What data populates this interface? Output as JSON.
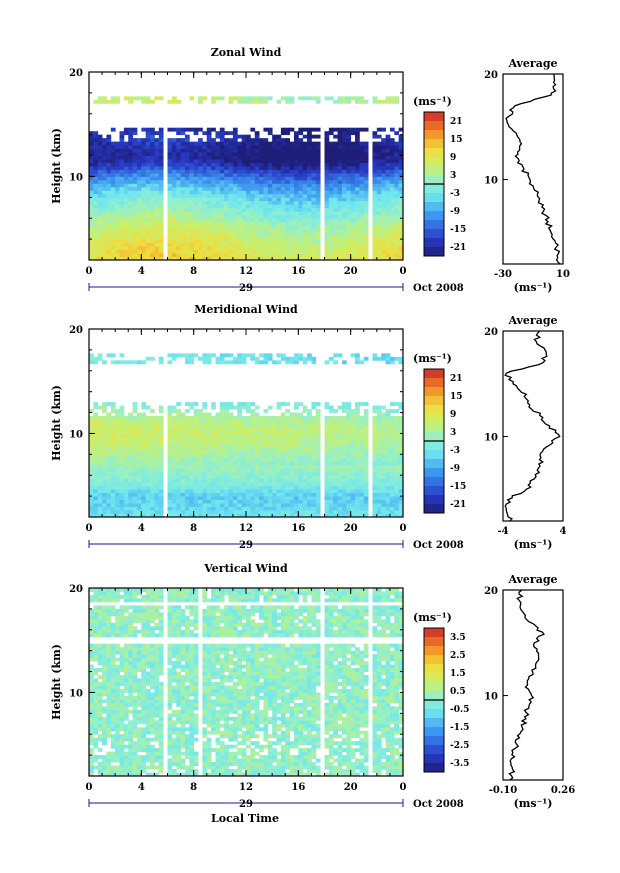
{
  "figure": {
    "xlabel": "Local Time",
    "date_label": "Oct 2008",
    "day_label": "29"
  },
  "panels": [
    {
      "key": "zonal",
      "title": "Zonal Wind",
      "ylabel": "Height (km)",
      "cbar_unit": "(ms⁻¹)",
      "cbar_labels": [
        "21",
        "15",
        "9",
        "3",
        "-3",
        "-9",
        "-15",
        "-21"
      ],
      "avg_title": "Average",
      "avg_unit": "(ms⁻¹)",
      "avg_xticks": [
        "-30",
        "10"
      ]
    },
    {
      "key": "meridional",
      "title": "Meridional Wind",
      "ylabel": "Height (km)",
      "cbar_unit": "(ms⁻¹)",
      "cbar_labels": [
        "21",
        "15",
        "9",
        "3",
        "-3",
        "-9",
        "-15",
        "-21"
      ],
      "avg_title": "Average",
      "avg_unit": "(ms⁻¹)",
      "avg_xticks": [
        "-4",
        "4"
      ]
    },
    {
      "key": "vertical",
      "title": "Vertical Wind",
      "ylabel": "Height (km)",
      "cbar_unit": "(ms⁻¹)",
      "cbar_labels": [
        "3.5",
        "2.5",
        "1.5",
        "0.5",
        "-0.5",
        "-1.5",
        "-2.5",
        "-3.5"
      ],
      "avg_title": "Average",
      "avg_unit": "(ms⁻¹)",
      "avg_xticks": [
        "-0.10",
        "0.26"
      ]
    }
  ],
  "chart_data": [
    {
      "type": "heatmap",
      "title": "Zonal Wind",
      "xlabel": "Local Time",
      "ylabel": "Height (km)",
      "x_ticks": [
        "0",
        "4",
        "8",
        "12",
        "16",
        "20",
        "0"
      ],
      "y_ticks": [
        "20",
        "10"
      ],
      "xlim": [
        0,
        24
      ],
      "ylim": [
        2,
        20
      ],
      "color_scale": {
        "unit": "(ms⁻¹)",
        "min": -24,
        "max": 24
      },
      "data_gaps_hours": [
        5.8,
        17.8,
        21.6
      ],
      "profile_heights_km": [
        2,
        3,
        4,
        5,
        6,
        7,
        8,
        9,
        10,
        11,
        12,
        13,
        14,
        15,
        16,
        17,
        18
      ],
      "zonal_wind_profile": [
        10,
        9,
        7,
        5,
        2,
        -1,
        -4,
        -8,
        -13,
        -20,
        -24,
        -22,
        -20,
        -26,
        -6,
        5,
        3
      ],
      "average_profile": {
        "title": "Average",
        "xlim": [
          -30,
          10
        ],
        "x_ticks": [
          "-30",
          "10"
        ],
        "heights_km": [
          2,
          3,
          4,
          5,
          6,
          7,
          8,
          9,
          10,
          11,
          12,
          13,
          14,
          15,
          16,
          17,
          18,
          19,
          20
        ],
        "values": [
          8,
          7,
          5,
          2,
          0,
          -3,
          -6,
          -9,
          -12,
          -16,
          -20,
          -19,
          -20,
          -26,
          -26,
          -22,
          2,
          5,
          4
        ]
      }
    },
    {
      "type": "heatmap",
      "title": "Meridional Wind",
      "xlabel": "Local Time",
      "ylabel": "Height (km)",
      "x_ticks": [
        "0",
        "4",
        "8",
        "12",
        "16",
        "20",
        "0"
      ],
      "y_ticks": [
        "20",
        "10"
      ],
      "xlim": [
        0,
        24
      ],
      "ylim": [
        2,
        20
      ],
      "color_scale": {
        "unit": "(ms⁻¹)",
        "min": -24,
        "max": 24
      },
      "data_gaps_hours": [
        5.8,
        17.8,
        21.6
      ],
      "profile_heights_km": [
        2,
        3,
        4,
        5,
        6,
        7,
        8,
        9,
        10,
        11,
        12,
        13,
        14,
        15,
        16,
        17,
        18
      ],
      "meridional_wind_profile": [
        -3,
        -5,
        -6,
        -2,
        0,
        2,
        4,
        6,
        7,
        6,
        3,
        -1,
        -4,
        -5,
        -3,
        -2,
        -2
      ],
      "average_profile": {
        "title": "Average",
        "xlim": [
          -4.5,
          4.5
        ],
        "x_ticks": [
          "-4",
          "4"
        ],
        "heights_km": [
          2,
          3,
          4,
          5,
          6,
          7,
          8,
          9,
          10,
          11,
          12,
          13,
          14,
          15,
          16,
          17,
          18,
          19,
          20
        ],
        "values": [
          -3.5,
          -4.0,
          -3.8,
          -1.0,
          0.2,
          0.8,
          1.2,
          2.0,
          4.0,
          2.5,
          1.0,
          -0.5,
          -1.0,
          -3.0,
          -4.0,
          1.5,
          2.0,
          0.5,
          1.0
        ]
      }
    },
    {
      "type": "heatmap",
      "title": "Vertical Wind",
      "xlabel": "Local Time",
      "ylabel": "Height (km)",
      "x_ticks": [
        "0",
        "4",
        "8",
        "12",
        "16",
        "20",
        "0"
      ],
      "y_ticks": [
        "20",
        "10"
      ],
      "xlim": [
        0,
        24
      ],
      "ylim": [
        2,
        20
      ],
      "color_scale": {
        "unit": "(ms⁻¹)",
        "min": -4,
        "max": 4
      },
      "data_gaps_hours": [
        5.8,
        8.4,
        17.8,
        21.6
      ],
      "missing_height_bands_km": [
        [
          14.6,
          15.4
        ],
        [
          18.2,
          18.8
        ]
      ],
      "average_profile": {
        "title": "Average",
        "xlim": [
          -0.14,
          0.3
        ],
        "x_ticks": [
          "-0.10",
          "0.26"
        ],
        "heights_km": [
          2,
          3,
          4,
          5,
          6,
          7,
          8,
          9,
          10,
          11,
          12,
          13,
          14,
          15,
          16,
          17,
          18,
          19,
          20
        ],
        "values": [
          -0.09,
          -0.07,
          -0.08,
          -0.05,
          -0.02,
          0.0,
          0.02,
          0.05,
          0.07,
          0.04,
          0.08,
          0.1,
          0.12,
          0.09,
          0.15,
          0.05,
          0.0,
          -0.02,
          0.0
        ]
      }
    }
  ]
}
